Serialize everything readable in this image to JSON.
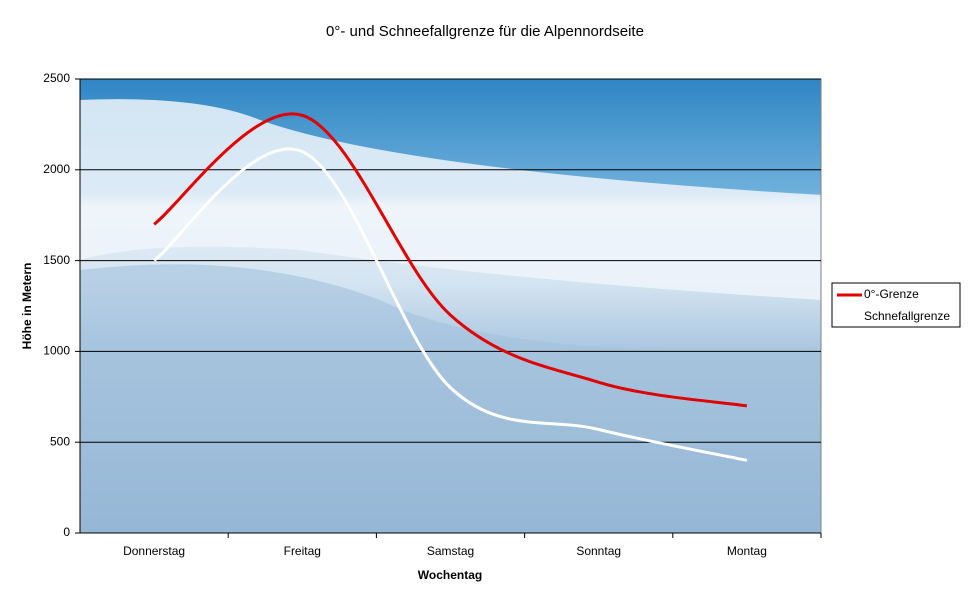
{
  "chart_data": {
    "type": "line",
    "title": "0°- und Schneefallgrenze für die Alpennordseite",
    "x_label": "Wochentag",
    "y_label": "Höhe in Metern",
    "categories": [
      "Donnerstag",
      "Freitag",
      "Samstag",
      "Sonntag",
      "Montag"
    ],
    "series": [
      {
        "name": "0°-Grenze",
        "color": "#e00000",
        "values": [
          1700,
          2300,
          1200,
          830,
          700
        ]
      },
      {
        "name": "Schnefallgrenze",
        "color": "#ffffff",
        "values": [
          1500,
          2100,
          800,
          570,
          400
        ]
      }
    ],
    "ylim": [
      0,
      2500
    ],
    "yticks": [
      0,
      500,
      1000,
      1500,
      2000,
      2500
    ],
    "grid": true,
    "smooth": true,
    "legend": "right"
  }
}
